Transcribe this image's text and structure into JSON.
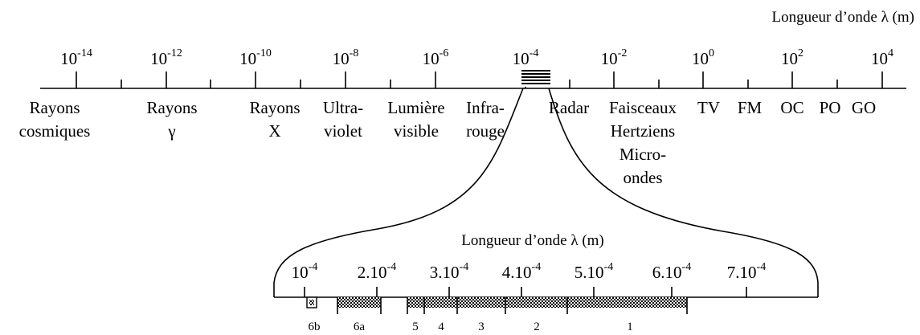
{
  "top_axis": {
    "title": "Longueur d’onde λ (m)",
    "ticks": [
      {
        "base": "10",
        "exp": "-14"
      },
      {
        "base": "10",
        "exp": "-12"
      },
      {
        "base": "10",
        "exp": "-10"
      },
      {
        "base": "10",
        "exp": "-8"
      },
      {
        "base": "10",
        "exp": "-6"
      },
      {
        "base": "10",
        "exp": "-4"
      },
      {
        "base": "10",
        "exp": "-2"
      },
      {
        "base": "10",
        "exp": "0"
      },
      {
        "base": "10",
        "exp": "2"
      },
      {
        "base": "10",
        "exp": "4"
      }
    ],
    "regions": [
      [
        "Rayons",
        "cosmiques"
      ],
      [
        "Rayons",
        "γ"
      ],
      [
        "Rayons",
        "X"
      ],
      [
        "Ultra-",
        "violet"
      ],
      [
        "Lumière",
        "visible"
      ],
      [
        "Infra-",
        "rouge"
      ],
      [
        "Radar"
      ],
      [
        "Faisceaux",
        "Hertziens",
        "Micro-",
        "ondes"
      ],
      [
        "TV"
      ],
      [
        "FM"
      ],
      [
        "OC"
      ],
      [
        "PO"
      ],
      [
        "GO"
      ]
    ]
  },
  "zoom_axis": {
    "title": "Longueur d’onde λ (m)",
    "ticks": [
      {
        "base": "10",
        "exp": "-4"
      },
      {
        "base": "2.10",
        "exp": "-4"
      },
      {
        "base": "3.10",
        "exp": "-4"
      },
      {
        "base": "4.10",
        "exp": "-4"
      },
      {
        "base": "5.10",
        "exp": "-4"
      },
      {
        "base": "6.10",
        "exp": "-4"
      },
      {
        "base": "7.10",
        "exp": "-4"
      }
    ],
    "bands": [
      "6b",
      "6a",
      "5",
      "4",
      "3",
      "2",
      "1"
    ]
  }
}
